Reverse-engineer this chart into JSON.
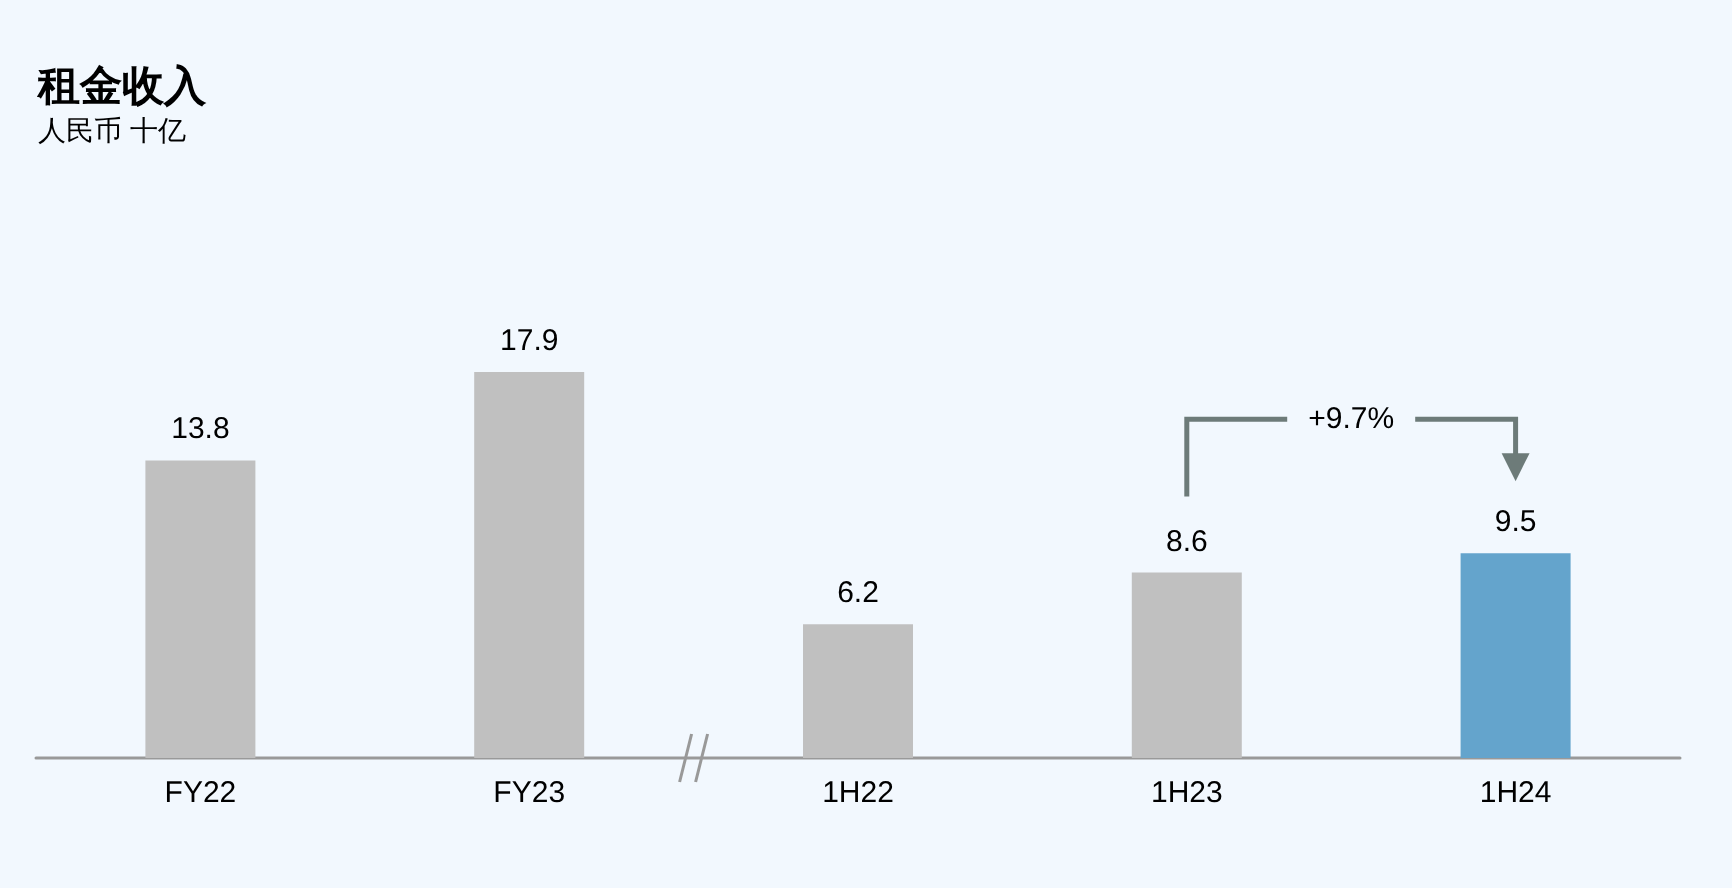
{
  "chart_data": {
    "type": "bar",
    "title": "租金收入",
    "subtitle": "人民币 十亿",
    "categories": [
      "FY22",
      "FY23",
      "1H22",
      "1H23",
      "1H24"
    ],
    "values": [
      13.8,
      17.9,
      6.2,
      8.6,
      9.5
    ],
    "colors": [
      "#c0c0c0",
      "#c0c0c0",
      "#c0c0c0",
      "#c0c0c0",
      "#64a4cc"
    ],
    "data_labels": true,
    "annotations": [
      "+9.7%"
    ]
  }
}
